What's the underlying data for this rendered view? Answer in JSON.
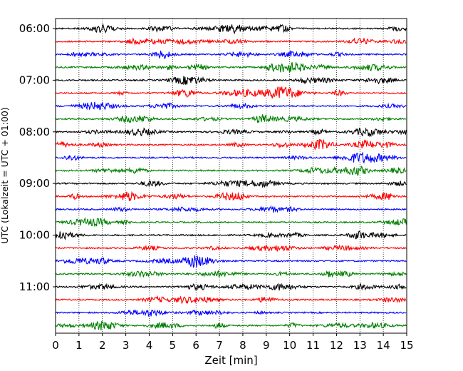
{
  "chart_data": {
    "type": "line",
    "subtype": "helicorder",
    "xlabel": "Zeit  [min]",
    "ylabel": "UTC (Lokalzeit = UTC + 01:00)",
    "xlim": [
      0,
      15
    ],
    "x_ticks": [
      0,
      1,
      2,
      3,
      4,
      5,
      6,
      7,
      8,
      9,
      10,
      11,
      12,
      13,
      14,
      15
    ],
    "x_grid": "dotted vertical lines at each minute",
    "y_tick_labels": [
      "06:00",
      "07:00",
      "08:00",
      "09:00",
      "10:00",
      "11:00"
    ],
    "trace_interval_minutes": 15,
    "color_cycle": [
      "#000000",
      "#ff0000",
      "#0000ff",
      "#008000"
    ],
    "trace_start_times": [
      "06:00",
      "06:15",
      "06:30",
      "06:45",
      "07:00",
      "07:15",
      "07:30",
      "07:45",
      "08:00",
      "08:15",
      "08:30",
      "08:45",
      "09:00",
      "09:15",
      "09:30",
      "09:45",
      "10:00",
      "10:15",
      "10:30",
      "10:45",
      "11:00",
      "11:15",
      "11:30",
      "11:45"
    ]
  }
}
